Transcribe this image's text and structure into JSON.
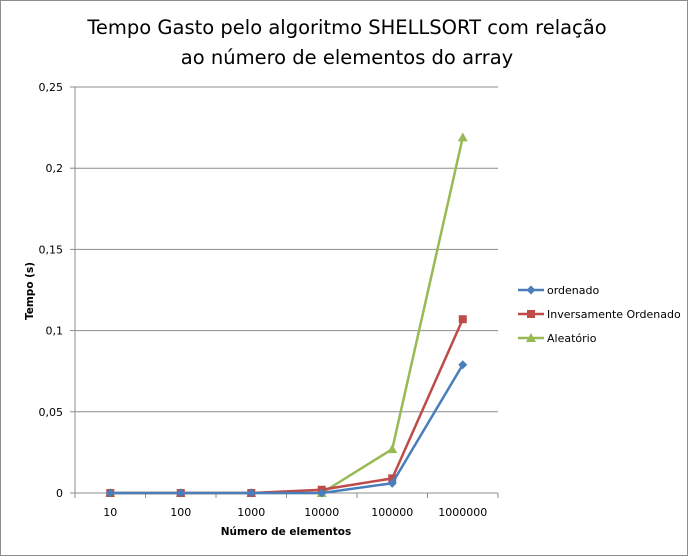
{
  "chart_data": {
    "type": "line",
    "title_lines": [
      "Tempo Gasto pelo algoritmo SHELLSORT com relação",
      "ao número de elementos do array"
    ],
    "xlabel": "Número de elementos",
    "ylabel": "Tempo (s)",
    "categories": [
      "10",
      "100",
      "1000",
      "10000",
      "100000",
      "1000000"
    ],
    "ylim": [
      0,
      0.25
    ],
    "yticks": [
      0,
      0.05,
      0.1,
      0.15,
      0.2,
      0.25
    ],
    "ytick_labels": [
      "0",
      "0,05",
      "0,1",
      "0,15",
      "0,2",
      "0,25"
    ],
    "grid": "horizontal",
    "legend_position": "right",
    "series": [
      {
        "name": "ordenado",
        "color": "#4a7ebb",
        "marker": "diamond",
        "values": [
          0,
          0,
          0,
          0,
          0.006,
          0.079
        ]
      },
      {
        "name": "Inversamente Ordenado",
        "color": "#be4b48",
        "marker": "square",
        "values": [
          0,
          0,
          0,
          0.002,
          0.009,
          0.107
        ]
      },
      {
        "name": "Aleatório",
        "color": "#98b954",
        "marker": "triangle",
        "values": [
          0,
          0,
          0,
          0,
          0.027,
          0.219
        ]
      }
    ]
  }
}
